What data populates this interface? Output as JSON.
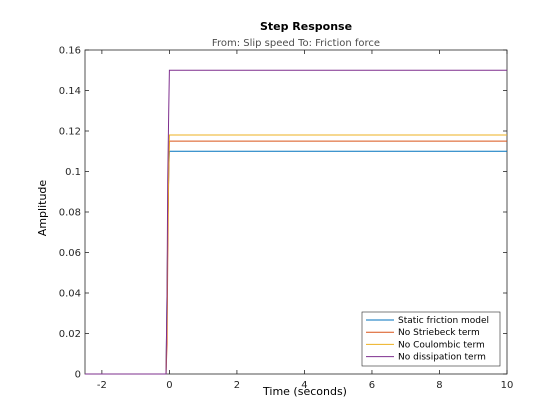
{
  "chart_data": {
    "type": "line",
    "title": "Step Response",
    "subtitle": "From: Slip speed  To: Friction force",
    "xlabel": "Time (seconds)",
    "ylabel": "Amplitude",
    "xlim": [
      -2.5,
      10
    ],
    "ylim": [
      0,
      0.16
    ],
    "xticks": [
      "-2",
      "0",
      "2",
      "4",
      "6",
      "8",
      "10"
    ],
    "yticks": [
      "0",
      "0.02",
      "0.04",
      "0.06",
      "0.08",
      "0.1",
      "0.12",
      "0.14",
      "0.16"
    ],
    "grid": false,
    "legend_position": "bottom-right",
    "series": [
      {
        "name": "Static friction model",
        "color": "#0072BD",
        "x": [
          -2.5,
          -0.1,
          -0.07,
          -0.05,
          -0.02,
          0.0,
          10.0
        ],
        "y": [
          0,
          0,
          0.04,
          0.07,
          0.1,
          0.11,
          0.11
        ]
      },
      {
        "name": "No Striebeck term",
        "color": "#D95319",
        "x": [
          -2.5,
          -0.1,
          -0.07,
          -0.05,
          -0.02,
          0.0,
          10.0
        ],
        "y": [
          0,
          0,
          0.015,
          0.055,
          0.1,
          0.115,
          0.115
        ]
      },
      {
        "name": "No Coulombic term",
        "color": "#EDB120",
        "x": [
          -2.5,
          -0.1,
          -0.07,
          -0.05,
          -0.02,
          0.0,
          10.0
        ],
        "y": [
          0,
          0,
          0.03,
          0.07,
          0.1,
          0.118,
          0.118
        ]
      },
      {
        "name": "No dissipation term",
        "color": "#7E2F8E",
        "x": [
          -2.5,
          -0.1,
          -0.07,
          -0.05,
          -0.02,
          0.0,
          10.0
        ],
        "y": [
          0,
          0,
          0.04,
          0.095,
          0.13,
          0.15,
          0.15
        ]
      }
    ]
  }
}
